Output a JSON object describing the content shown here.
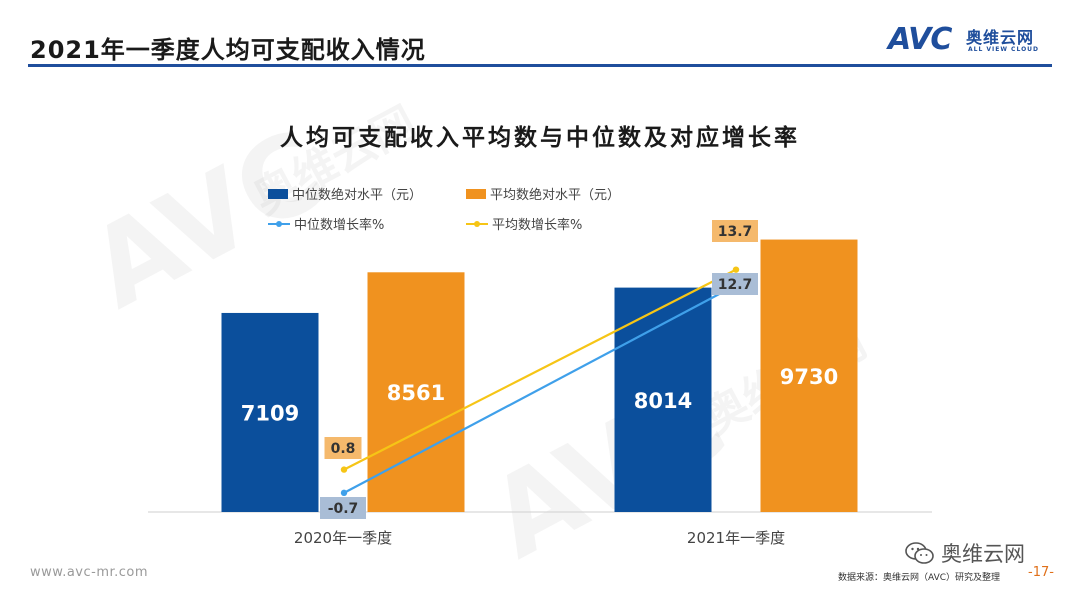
{
  "header": {
    "title": "2021年一季度人均可支配收入情况"
  },
  "logo": {
    "mark": "AVC",
    "cn": "奥维云网",
    "en": "ALL VIEW CLOUD"
  },
  "colors": {
    "median_bar": "#0b4f9c",
    "mean_bar": "#f0921f",
    "median_line": "#3fa0ea",
    "mean_line": "#f6c516",
    "header_rule": "#1f4e9c"
  },
  "chart_data": {
    "type": "bar",
    "title": "人均可支配收入平均数与中位数及对应增长率",
    "categories": [
      "2020年一季度",
      "2021年一季度"
    ],
    "series": [
      {
        "name": "中位数绝对水平（元）",
        "kind": "bar",
        "values": [
          7109,
          8014
        ]
      },
      {
        "name": "平均数绝对水平（元）",
        "kind": "bar",
        "values": [
          8561,
          9730
        ]
      },
      {
        "name": "中位数增长率%",
        "kind": "line",
        "values": [
          -0.7,
          12.7
        ]
      },
      {
        "name": "平均数增长率%",
        "kind": "line",
        "values": [
          0.8,
          13.7
        ]
      }
    ],
    "grid": false,
    "legend_position": "top-left"
  },
  "footer": {
    "url": "www.avc-mr.com",
    "wechat": "奥维云网",
    "source": "数据来源：奥维云网（AVC）研究及整理",
    "page": "-17-"
  }
}
